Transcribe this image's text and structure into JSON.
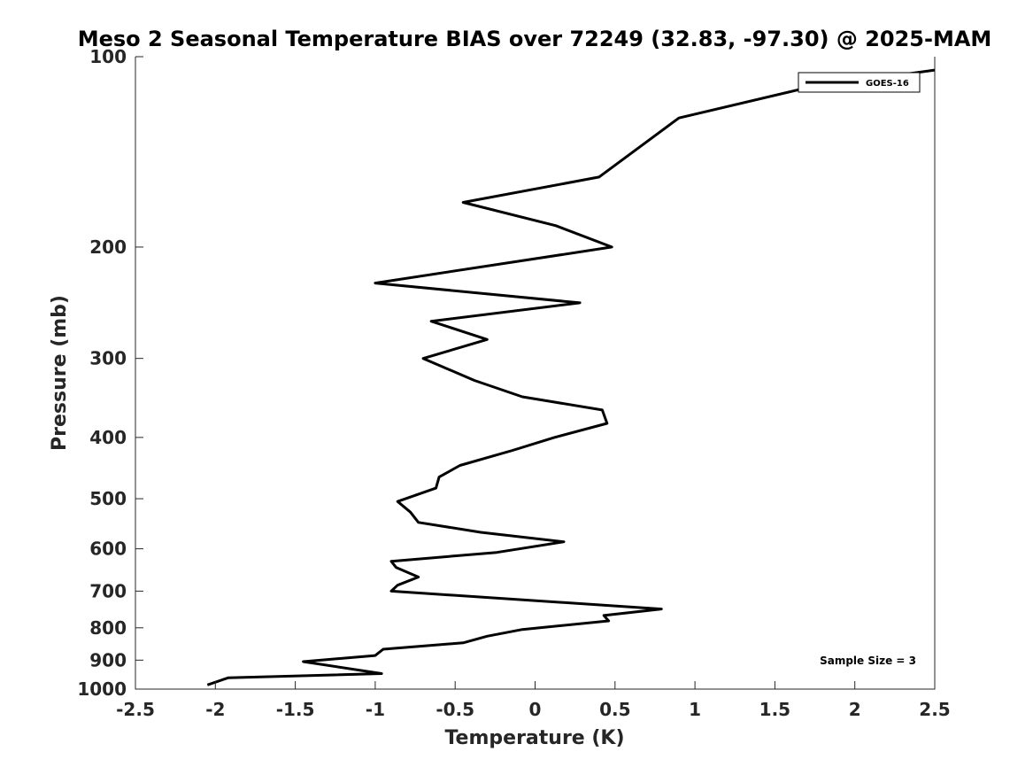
{
  "chart_data": {
    "type": "line",
    "title": "Meso 2 Seasonal Temperature BIAS over 72249 (32.83, -97.30) @ 2025-MAM",
    "xlabel": "Temperature (K)",
    "ylabel": "Pressure (mb)",
    "xlim": [
      -2.5,
      2.5
    ],
    "ylim": [
      100,
      1000
    ],
    "y_scale": "log",
    "y_reversed": true,
    "x_ticks": [
      -2.5,
      -2,
      -1.5,
      -1,
      -0.5,
      0,
      0.5,
      1,
      1.5,
      2,
      2.5
    ],
    "x_tick_labels": [
      "-2.5",
      "-2",
      "-1.5",
      "-1",
      "-0.5",
      "0",
      "0.5",
      "1",
      "1.5",
      "2",
      "2.5"
    ],
    "y_ticks": [
      100,
      200,
      300,
      400,
      500,
      600,
      700,
      800,
      900,
      1000
    ],
    "y_tick_labels": [
      "100",
      "200",
      "300",
      "400",
      "500",
      "600",
      "700",
      "800",
      "900",
      "1000"
    ],
    "grid": false,
    "legend": {
      "placement": "top-right",
      "entries": [
        "GOES-16"
      ]
    },
    "annotation": "Sample Size = 3",
    "series": [
      {
        "name": "GOES-16",
        "color": "#000000",
        "points": [
          [
            2.5,
            105
          ],
          [
            1.7,
            112
          ],
          [
            0.9,
            125
          ],
          [
            0.4,
            155
          ],
          [
            -0.45,
            170
          ],
          [
            0.13,
            185
          ],
          [
            0.48,
            200
          ],
          [
            -1.0,
            228
          ],
          [
            0.28,
            245
          ],
          [
            -0.65,
            262
          ],
          [
            -0.3,
            280
          ],
          [
            -0.7,
            300
          ],
          [
            -0.38,
            325
          ],
          [
            -0.08,
            345
          ],
          [
            0.42,
            362
          ],
          [
            0.45,
            380
          ],
          [
            0.12,
            400
          ],
          [
            -0.15,
            420
          ],
          [
            -0.47,
            443
          ],
          [
            -0.6,
            462
          ],
          [
            -0.62,
            481
          ],
          [
            -0.86,
            505
          ],
          [
            -0.78,
            525
          ],
          [
            -0.73,
            545
          ],
          [
            -0.34,
            565
          ],
          [
            0.18,
            585
          ],
          [
            -0.24,
            608
          ],
          [
            -0.9,
            628
          ],
          [
            -0.87,
            642
          ],
          [
            -0.73,
            665
          ],
          [
            -0.86,
            685
          ],
          [
            -0.9,
            700
          ],
          [
            0.79,
            747
          ],
          [
            0.43,
            765
          ],
          [
            0.46,
            780
          ],
          [
            -0.08,
            805
          ],
          [
            -0.3,
            825
          ],
          [
            -0.45,
            845
          ],
          [
            -0.95,
            865
          ],
          [
            -1.0,
            885
          ],
          [
            -1.45,
            905
          ],
          [
            -0.96,
            945
          ],
          [
            -1.92,
            960
          ],
          [
            -2.05,
            985
          ]
        ]
      }
    ]
  }
}
